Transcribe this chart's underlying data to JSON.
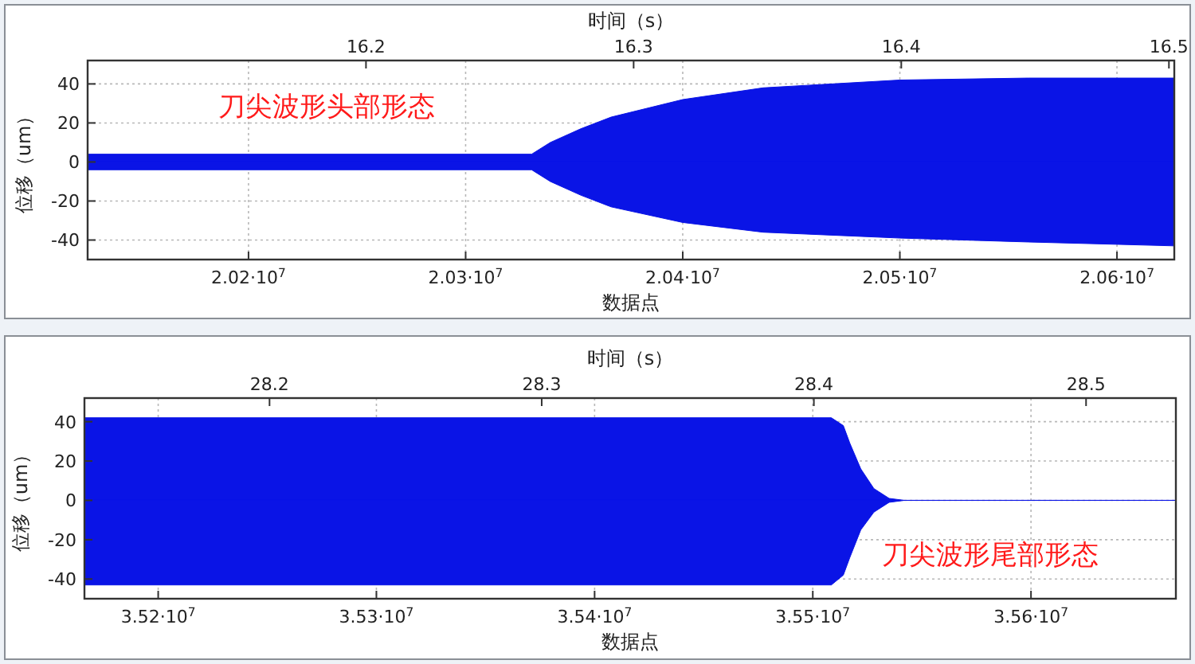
{
  "chart_data": [
    {
      "type": "area",
      "xlabel": "数据点",
      "x2label": "时间（s）",
      "ylabel": "位移（um）",
      "xlim": [
        20125900,
        20626400
      ],
      "xticks": [
        {
          "value": 20200000,
          "label": "2.02·10$^{7}$"
        },
        {
          "value": 20300000,
          "label": "2.03·10$^{7}$"
        },
        {
          "value": 20400000,
          "label": "2.04·10$^{7}$"
        },
        {
          "value": 20500000,
          "label": "2.05·10$^{7}$"
        },
        {
          "value": 20600000,
          "label": "2.06·10$^{7}$"
        }
      ],
      "x2lim": [
        16.096,
        16.502
      ],
      "x2ticks": [
        16.2,
        16.3,
        16.4,
        16.5
      ],
      "ylim": [
        -50,
        52
      ],
      "yticks": [
        -40,
        -20,
        0,
        20,
        40
      ],
      "grid": true,
      "annotations": [
        "刀尖波形头部形态"
      ],
      "series": [
        {
          "color": "#0a14e6",
          "x": [
            20125900,
            20330400,
            20339000,
            20353000,
            20367000,
            20400000,
            20437000,
            20500000,
            20559000,
            20626400
          ],
          "values": [
            4,
            4,
            10,
            17,
            23,
            32,
            38,
            42,
            43,
            43
          ]
        },
        {
          "color": "#0a14e6",
          "x": [
            20125900,
            20330400,
            20339000,
            20353000,
            20367000,
            20400000,
            20437000,
            20500000,
            20559000,
            20626400
          ],
          "values": [
            -4,
            -4,
            -10,
            -17,
            -23,
            -31,
            -36,
            -39,
            -41,
            -43
          ]
        }
      ]
    },
    {
      "type": "area",
      "xlabel": "数据点",
      "x2label": "时间（s）",
      "ylabel": "位移（um）",
      "xlim": [
        35166200,
        35666400
      ],
      "xticks": [
        {
          "value": 35200000,
          "label": "3.52·10$^{7}$"
        },
        {
          "value": 35300000,
          "label": "3.53·10$^{7}$"
        },
        {
          "value": 35400000,
          "label": "3.54·10$^{7}$"
        },
        {
          "value": 35500000,
          "label": "3.55·10$^{7}$"
        },
        {
          "value": 35600000,
          "label": "3.56·10$^{7}$"
        }
      ],
      "x2lim": [
        28.132,
        28.533
      ],
      "x2ticks": [
        28.2,
        28.3,
        28.4,
        28.5
      ],
      "ylim": [
        -50,
        52
      ],
      "yticks": [
        -40,
        -20,
        0,
        20,
        40
      ],
      "grid": true,
      "annotations": [
        "刀尖波形尾部形态"
      ],
      "series": [
        {
          "color": "#0a14e6",
          "x": [
            35166200,
            35508500,
            35514000,
            35517000,
            35522000,
            35528000,
            35535000,
            35542000,
            35666400
          ],
          "values": [
            42,
            42,
            38,
            29,
            16,
            6,
            1,
            0,
            0
          ]
        },
        {
          "color": "#0a14e6",
          "x": [
            35166200,
            35508500,
            35514000,
            35517000,
            35522000,
            35528000,
            35535000,
            35542000,
            35666400
          ],
          "values": [
            -43,
            -43,
            -38,
            -29,
            -15,
            -6,
            -1,
            0,
            0
          ]
        }
      ]
    }
  ]
}
